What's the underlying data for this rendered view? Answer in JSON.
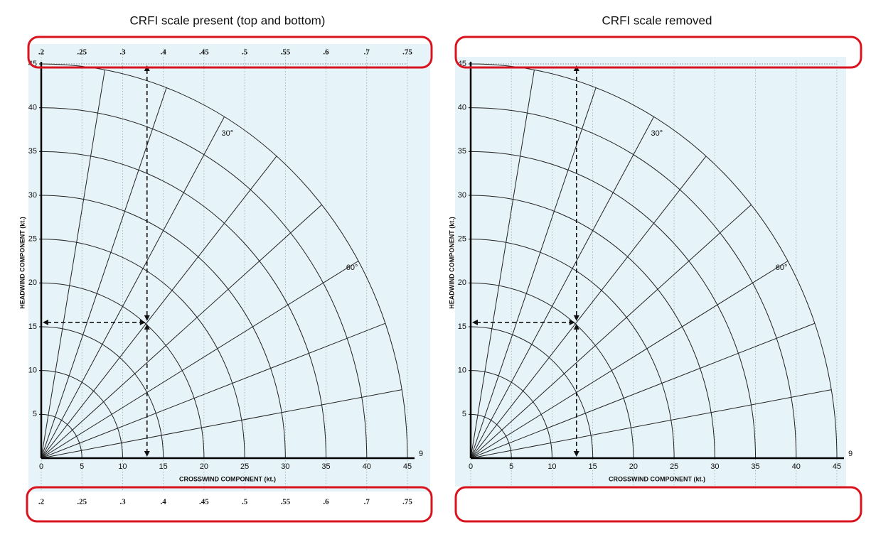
{
  "panels": [
    {
      "title": "CRFI scale present (top and bottom)",
      "xlabel": "CROSSWIND COMPONENT (kt.)",
      "ylabel": "HEADWIND COMPONENT (kt.)",
      "xlim": [
        0,
        45
      ],
      "ylim": [
        0,
        45
      ],
      "xticks": [
        0,
        5,
        10,
        15,
        20,
        25,
        30,
        35,
        40,
        45
      ],
      "yticks": [
        5,
        10,
        15,
        20,
        25,
        30,
        35,
        40,
        45
      ],
      "angle_labels": [
        "30°",
        "60°"
      ],
      "end_label": "9",
      "crfi_top": [
        ".2",
        ".25",
        ".3",
        ".4",
        ".45",
        ".5",
        ".55",
        ".6",
        ".7",
        ".75"
      ],
      "crfi_bottom": [
        ".2",
        ".25",
        ".3",
        ".4",
        ".45",
        ".5",
        ".55",
        ".6",
        ".7",
        ".75"
      ]
    },
    {
      "title": "CRFI scale removed",
      "xlabel": "CROSSWIND COMPONENT (kt.)",
      "ylabel": "HEADWIND COMPONENT (kt.)",
      "xlim": [
        0,
        45
      ],
      "ylim": [
        0,
        45
      ],
      "xticks": [
        0,
        5,
        10,
        15,
        20,
        25,
        30,
        35,
        40,
        45
      ],
      "yticks": [
        5,
        10,
        15,
        20,
        25,
        30,
        35,
        40,
        45
      ],
      "angle_labels": [
        "30°",
        "60°"
      ],
      "end_label": "9"
    }
  ]
}
